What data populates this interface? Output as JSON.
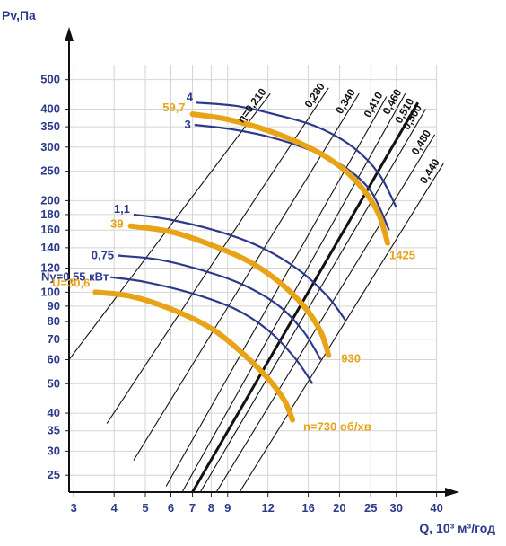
{
  "chart_data": {
    "type": "line",
    "title": "",
    "xlabel": "Q, 10³ м³/год",
    "ylabel": "Pv,Па",
    "x_scale": "log",
    "y_scale": "log",
    "xlim": [
      2.9,
      45
    ],
    "ylim": [
      22,
      560
    ],
    "grid": true,
    "x_ticks": [
      3,
      4,
      5,
      6,
      7,
      8,
      9,
      12,
      16,
      20,
      25,
      30,
      40
    ],
    "x_tick_labels": [
      "3",
      "4",
      "5",
      "6",
      "7",
      "8",
      "9",
      "12",
      "16",
      "20",
      "25",
      "30",
      "40"
    ],
    "y_ticks": [
      25,
      30,
      35,
      40,
      50,
      60,
      70,
      80,
      90,
      100,
      120,
      140,
      160,
      180,
      200,
      250,
      300,
      350,
      400,
      500
    ],
    "y_tick_labels": [
      "25",
      "30",
      "35",
      "40",
      "50",
      "60",
      "70",
      "80",
      "90",
      "100",
      "120",
      "140",
      "160",
      "180",
      "200",
      "250",
      "300",
      "350",
      "400",
      "500"
    ],
    "efficiency_lines": [
      {
        "label": "η=0,210",
        "points": [
          [
            2.9,
            60
          ],
          [
            12.2,
            450
          ]
        ]
      },
      {
        "label": "0,280",
        "points": [
          [
            3.8,
            37
          ],
          [
            18.5,
            470
          ]
        ]
      },
      {
        "label": "0,340",
        "points": [
          [
            4.6,
            28
          ],
          [
            23.0,
            450
          ]
        ]
      },
      {
        "label": "0,410",
        "points": [
          [
            5.8,
            23
          ],
          [
            28.0,
            440
          ]
        ]
      },
      {
        "label": "0,460",
        "points": [
          [
            6.5,
            22
          ],
          [
            32.0,
            450
          ]
        ]
      },
      {
        "label": "0,510",
        "points": [
          [
            7.0,
            22
          ],
          [
            35.0,
            420
          ]
        ]
      },
      {
        "label": "0,500",
        "points": [
          [
            7.4,
            22
          ],
          [
            37.0,
            400
          ]
        ]
      },
      {
        "label": "0,480",
        "points": [
          [
            8.3,
            22
          ],
          [
            39.5,
            330
          ]
        ]
      },
      {
        "label": "0,440",
        "points": [
          [
            9.8,
            22
          ],
          [
            42.0,
            265
          ]
        ]
      }
    ],
    "speed_series": [
      {
        "name": "n=730 об/хв",
        "x": [
          3.5,
          4.5,
          6.0,
          8.0,
          10.0,
          12.0,
          13.5,
          14.3
        ],
        "y": [
          100,
          97,
          88,
          76,
          63,
          52,
          44,
          38
        ]
      },
      {
        "name": "930",
        "x": [
          4.5,
          6.0,
          8.0,
          10.5,
          13.0,
          15.5,
          17.5,
          18.5
        ],
        "y": [
          165,
          158,
          143,
          126,
          108,
          90,
          74,
          62
        ]
      },
      {
        "name": "1425",
        "x": [
          7.0,
          9.0,
          12.0,
          16.0,
          20.0,
          23.5,
          26.5,
          28.2
        ],
        "y": [
          385,
          370,
          340,
          300,
          260,
          220,
          180,
          145
        ]
      }
    ],
    "speed_labels": [
      "n=730 об/хв",
      "930",
      "1425"
    ],
    "speed_left_labels": [
      "U=30,6",
      "39",
      "59,7"
    ],
    "power_series": [
      {
        "name": "Ny=0,55 кВт",
        "x": [
          3.9,
          5.0,
          7.0,
          9.5,
          12.0,
          14.5,
          16.5
        ],
        "y": [
          112,
          108,
          99,
          88,
          75,
          61,
          50
        ]
      },
      {
        "name": "0,75",
        "x": [
          4.1,
          5.5,
          7.5,
          10.0,
          13.0,
          15.5,
          17.5
        ],
        "y": [
          132,
          128,
          118,
          106,
          90,
          74,
          60
        ]
      },
      {
        "name": "1,1",
        "x": [
          4.6,
          6.0,
          8.5,
          11.5,
          15.0,
          18.5,
          21.0
        ],
        "y": [
          180,
          173,
          158,
          140,
          118,
          96,
          80
        ]
      },
      {
        "name": "3",
        "x": [
          7.1,
          9.0,
          12.0,
          16.0,
          20.5,
          25.0,
          28.5
        ],
        "y": [
          355,
          345,
          325,
          295,
          260,
          215,
          160
        ]
      },
      {
        "name": "4",
        "x": [
          7.2,
          9.5,
          12.5,
          17.0,
          22.0,
          26.5,
          30.0
        ],
        "y": [
          420,
          410,
          385,
          350,
          300,
          245,
          190
        ]
      }
    ],
    "power_labels": [
      "Ny=0,55 кВт",
      "0,75",
      "1,1",
      "3",
      "4"
    ]
  }
}
